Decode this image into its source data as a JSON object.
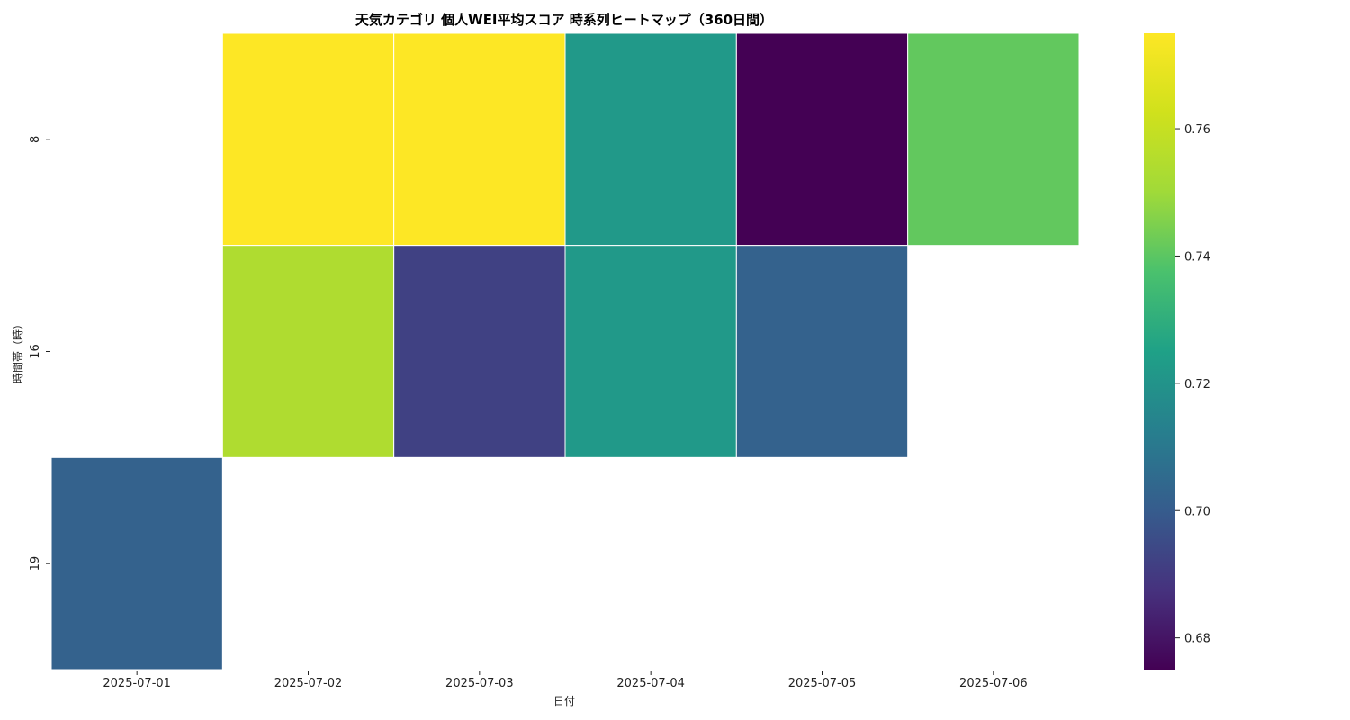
{
  "chart_data": {
    "type": "heatmap",
    "title": "天気カテゴリ 個人WEI平均スコア 時系列ヒートマップ（360日間）",
    "xlabel": "日付",
    "ylabel": "時間帯（時）",
    "x_categories": [
      "2025-07-01",
      "2025-07-02",
      "2025-07-03",
      "2025-07-04",
      "2025-07-05",
      "2025-07-06"
    ],
    "y_categories": [
      "8",
      "16",
      "19"
    ],
    "values": [
      [
        null,
        0.775,
        0.775,
        0.722,
        0.675,
        0.741
      ],
      [
        null,
        0.754,
        0.692,
        0.722,
        0.702,
        null
      ],
      [
        0.702,
        null,
        null,
        null,
        null,
        null
      ]
    ],
    "colormap": "viridis",
    "colorbar": {
      "min": 0.675,
      "max": 0.775,
      "ticks": [
        "0.68",
        "0.70",
        "0.72",
        "0.74",
        "0.76"
      ]
    },
    "grid": false
  }
}
